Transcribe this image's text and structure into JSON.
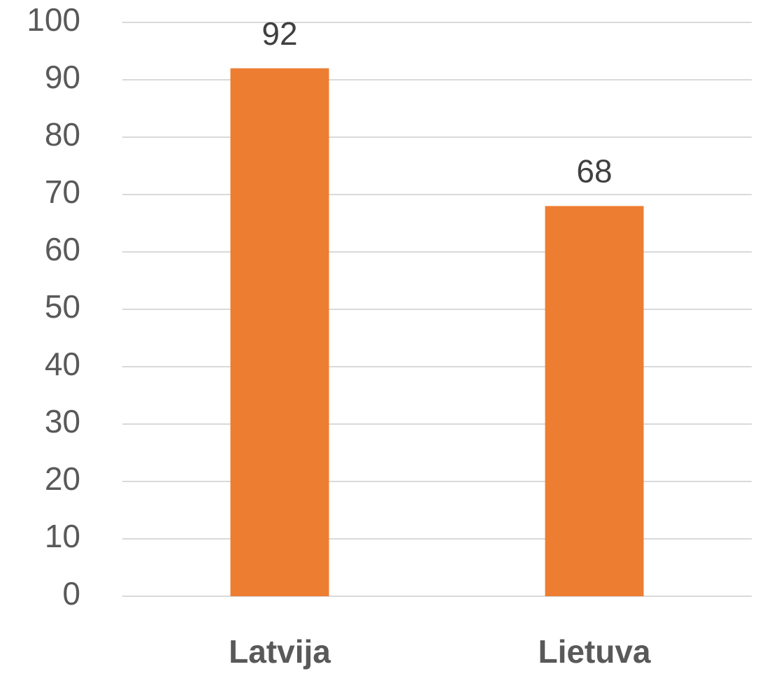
{
  "chart_data": {
    "type": "bar",
    "categories": [
      "Latvija",
      "Lietuva"
    ],
    "values": [
      92,
      68
    ],
    "color": "#ed7d31",
    "ylim": [
      0,
      100
    ],
    "yticks": [
      0,
      10,
      20,
      30,
      40,
      50,
      60,
      70,
      80,
      90,
      100
    ],
    "grid": true,
    "data_labels": true
  }
}
